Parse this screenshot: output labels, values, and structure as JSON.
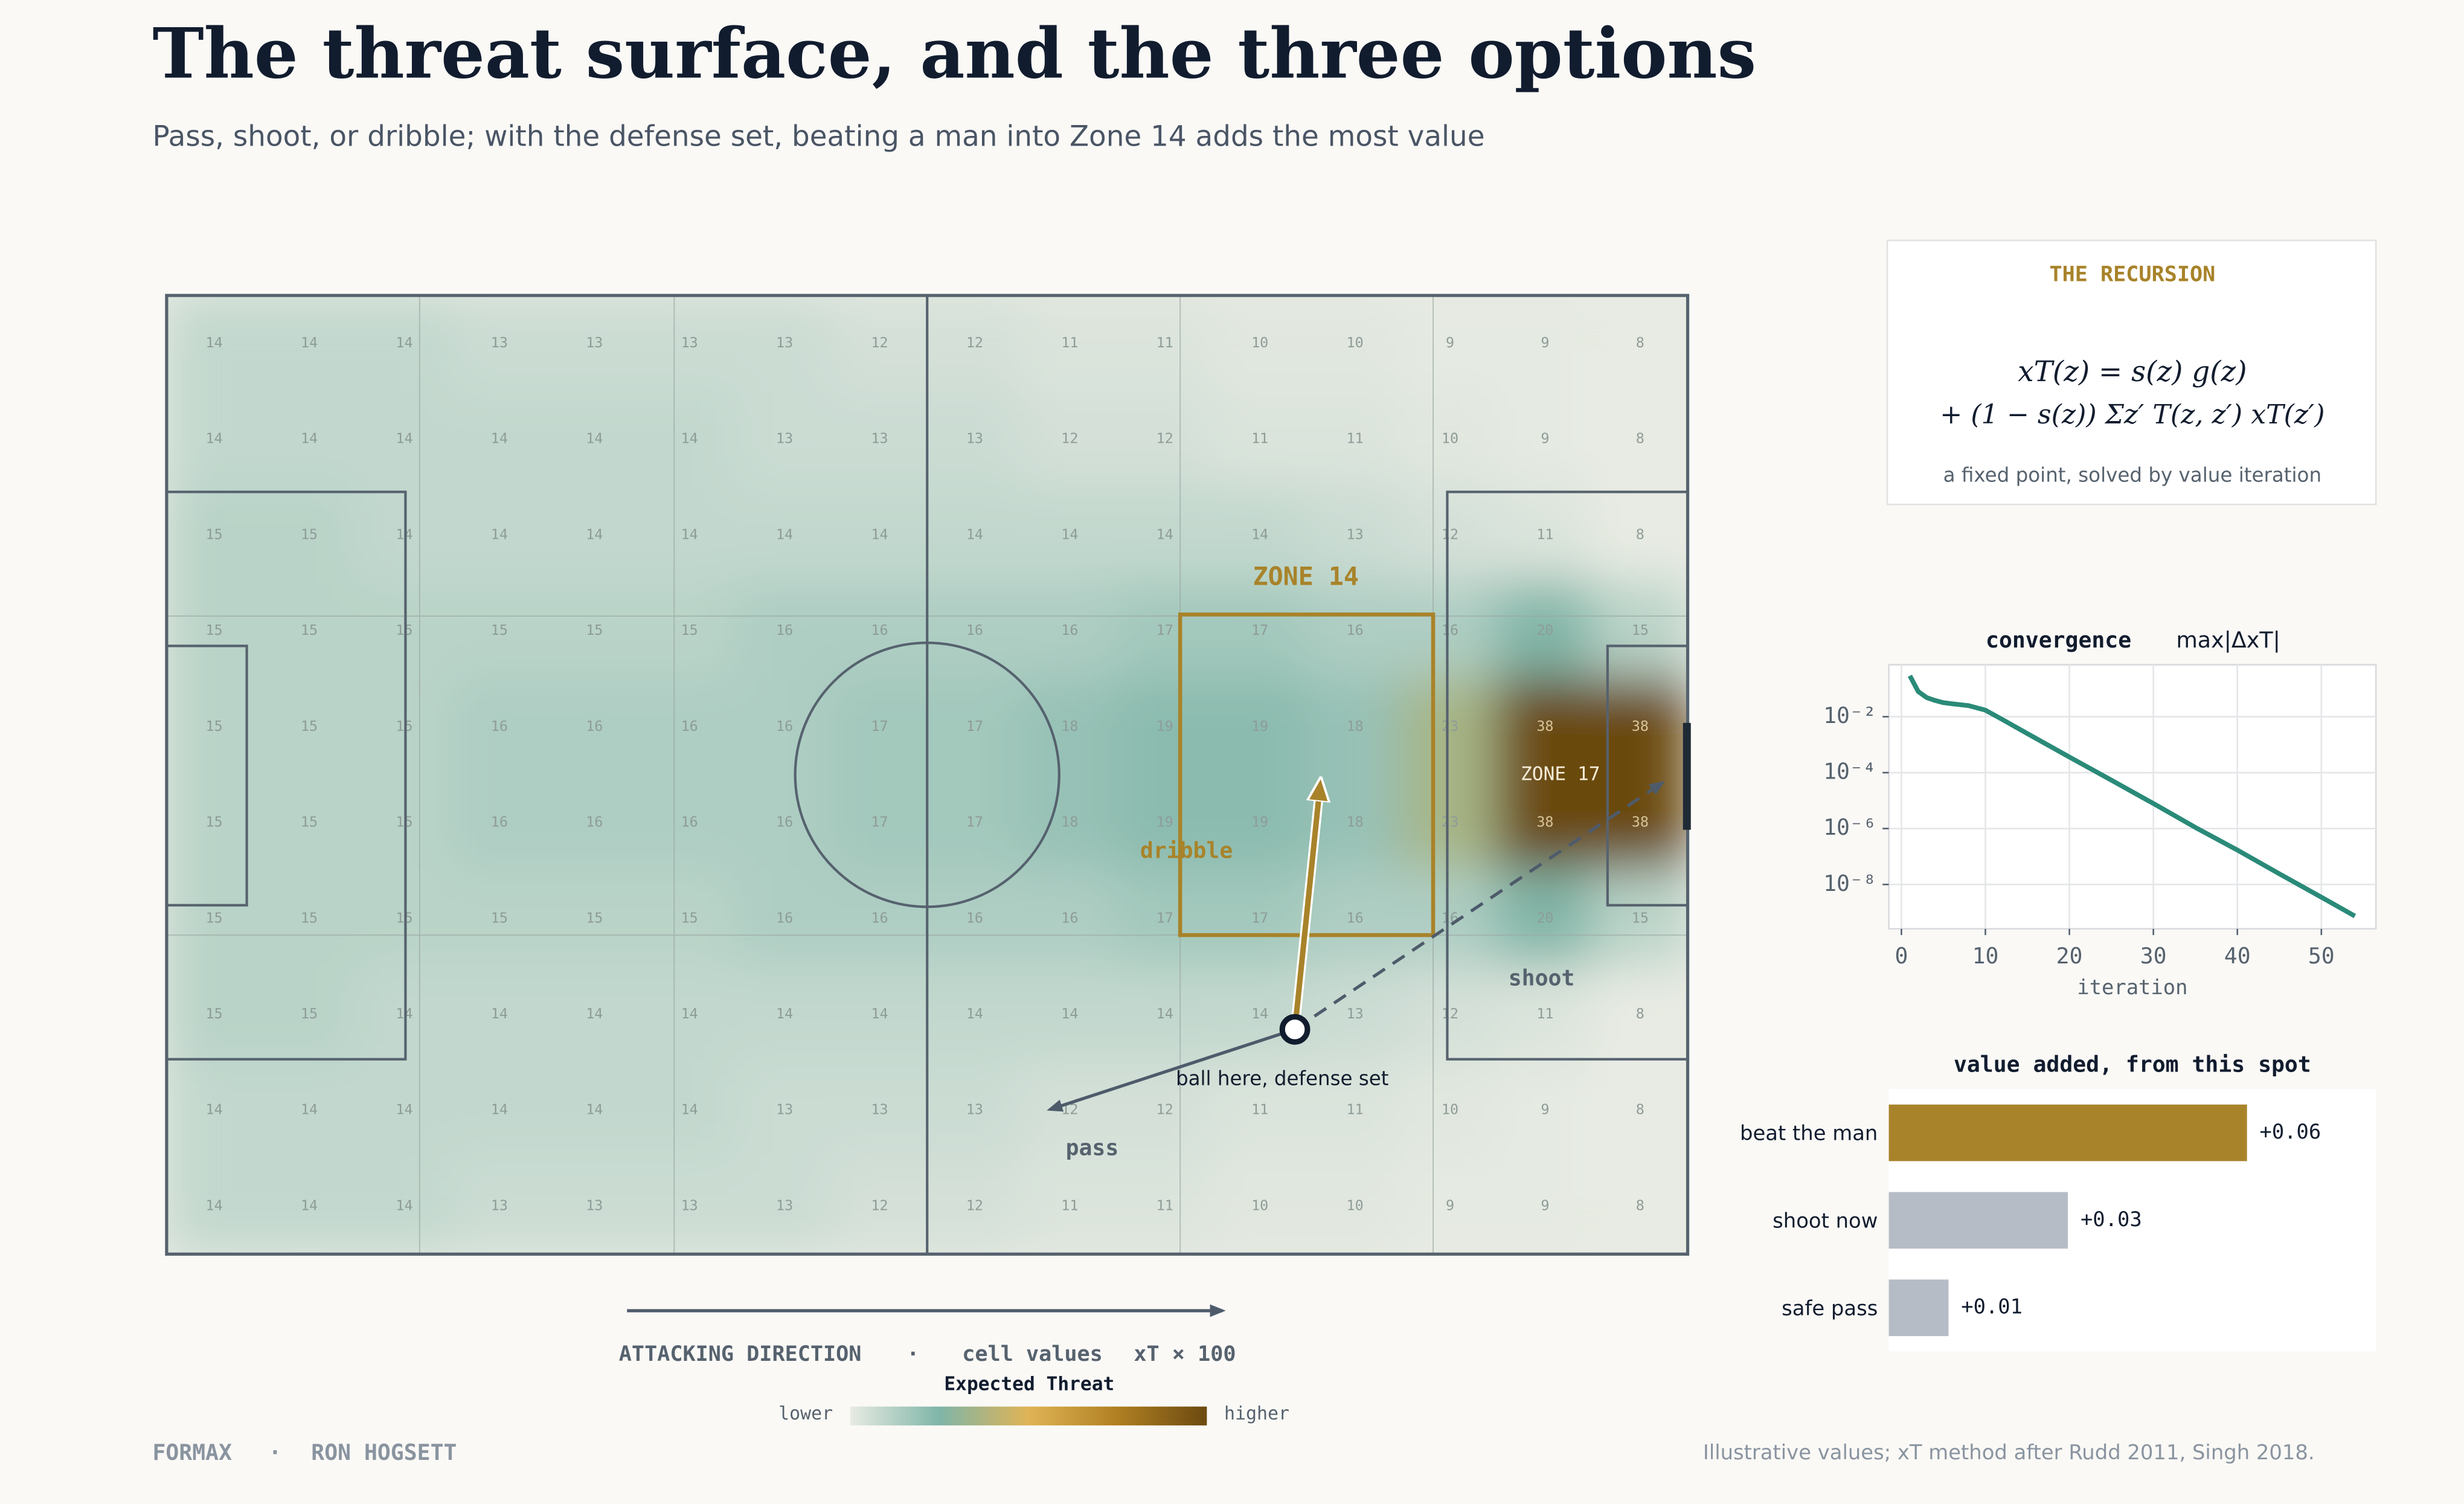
{
  "header": {
    "title": "The threat surface, and the three options",
    "subtitle": "Pass, shoot, or dribble; with the defense set, beating a man into Zone 14 adds the most value"
  },
  "chart_data": [
    {
      "type": "heatmap",
      "values": [
        [
          14,
          14,
          14,
          13,
          13,
          13,
          13,
          12,
          12,
          11,
          11,
          10,
          10,
          9,
          9,
          8
        ],
        [
          14,
          14,
          14,
          14,
          14,
          14,
          13,
          13,
          13,
          12,
          12,
          11,
          11,
          10,
          9,
          8
        ],
        [
          15,
          15,
          14,
          14,
          14,
          14,
          14,
          14,
          14,
          14,
          14,
          14,
          13,
          12,
          11,
          8
        ],
        [
          15,
          15,
          15,
          15,
          15,
          15,
          16,
          16,
          16,
          16,
          17,
          17,
          16,
          16,
          20,
          15
        ],
        [
          15,
          15,
          15,
          16,
          16,
          16,
          16,
          17,
          17,
          18,
          19,
          19,
          18,
          23,
          38,
          38
        ],
        [
          15,
          15,
          15,
          16,
          16,
          16,
          16,
          17,
          17,
          18,
          19,
          19,
          18,
          23,
          38,
          38
        ],
        [
          15,
          15,
          15,
          15,
          15,
          15,
          16,
          16,
          16,
          16,
          17,
          17,
          16,
          16,
          20,
          15
        ],
        [
          15,
          15,
          14,
          14,
          14,
          14,
          14,
          14,
          14,
          14,
          14,
          14,
          13,
          12,
          11,
          8
        ],
        [
          14,
          14,
          14,
          14,
          14,
          14,
          13,
          13,
          13,
          12,
          12,
          11,
          11,
          10,
          9,
          8
        ],
        [
          14,
          14,
          14,
          13,
          13,
          13,
          13,
          12,
          12,
          11,
          11,
          10,
          10,
          9,
          9,
          8
        ]
      ],
      "colors": [
        "#e8ebe3",
        "#7fb5a8",
        "#e0b456",
        "#b07f22",
        "#6b4a10"
      ],
      "annotations": {
        "zone14": "ZONE 14",
        "zone17": "ZONE 17",
        "dribble": "dribble",
        "shoot": "shoot",
        "pass": "pass",
        "ball": "ball here, defense set"
      },
      "caption": {
        "direction": "ATTACKING DIRECTION",
        "separator": "·",
        "cell_values": "cell values",
        "units": "xT × 100"
      },
      "colorbar": {
        "title": "Expected Threat",
        "low": "lower",
        "high": "higher"
      }
    },
    {
      "type": "line",
      "title": "convergence",
      "ylabel": "max|ΔxT|",
      "xlabel": "iteration",
      "x": [
        1,
        2,
        3,
        4,
        5,
        6,
        8,
        10,
        12,
        15,
        20,
        25,
        30,
        35,
        40,
        45,
        50,
        54
      ],
      "values": [
        0.29,
        0.08,
        0.048,
        0.038,
        0.032,
        0.029,
        0.025,
        0.017,
        0.008,
        0.0025,
        0.00036,
        5.4e-05,
        7.8e-06,
        1.1e-06,
        1.7e-07,
        2.4e-08,
        3.5e-09,
        7.4e-10
      ],
      "color": "#2a8a78",
      "log_y": true,
      "grid": true,
      "xlim": [
        -1.5,
        56.5
      ],
      "ylim": [
        2.6e-10,
        0.72
      ],
      "xticks": [
        0,
        10,
        20,
        30,
        40,
        50
      ],
      "yticks": [
        {
          "value": 0.01,
          "label": "10⁻²"
        },
        {
          "value": 0.0001,
          "label": "10⁻⁴"
        },
        {
          "value": 1e-06,
          "label": "10⁻⁶"
        },
        {
          "value": 1e-08,
          "label": "10⁻⁸"
        }
      ]
    },
    {
      "type": "bar",
      "title": "value added, from this spot",
      "categories": [
        "beat the man",
        "shoot now",
        "safe pass"
      ],
      "values": [
        0.06,
        0.03,
        0.01
      ],
      "value_labels": [
        "+0.06",
        "+0.03",
        "+0.01"
      ],
      "colors": [
        "#a8832a",
        "#b6bcc6",
        "#b6bcc6"
      ],
      "xlim": [
        0,
        0.0816
      ]
    }
  ],
  "recursion": {
    "title": "THE RECURSION",
    "equation_line1": "xT(z) = s(z) g(z)",
    "equation_line2": "+ (1 − s(z)) Σz′ T(z, z′) xT(z′)",
    "note": "a fixed point, solved by value iteration"
  },
  "footer": {
    "brand": "FORMAX",
    "separator": "·",
    "author": "RON HOGSETT",
    "note": "Illustrative values; xT method after Rudd 2011, Singh 2018."
  }
}
